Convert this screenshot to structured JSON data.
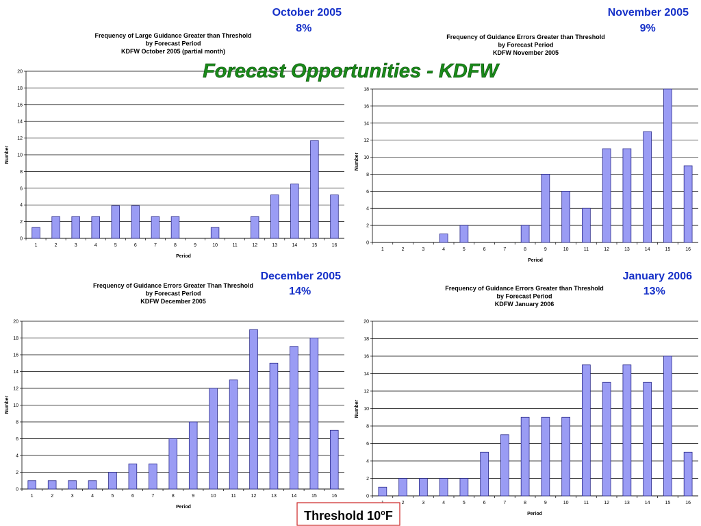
{
  "slide_title": "Forecast Opportunities - KDFW",
  "threshold_label": "Threshold 10",
  "threshold_unit_sup": "o",
  "threshold_unit": "F",
  "colors": {
    "title_green": "#1a8a1a",
    "heading_blue": "#1530c8",
    "bar_fill": "#9a9cf4",
    "bar_stroke": "#2a2a8a",
    "threshold_border": "#cc2222"
  },
  "chart_data": [
    {
      "type": "bar",
      "heading": "October 2005",
      "percent": "8%",
      "title_lines": [
        "Frequency of Large Guidance Greater than Threshold",
        "by Forecast Period",
        "KDFW October 2005 (partial month)"
      ],
      "xlabel": "Period",
      "ylabel": "Number",
      "ylim": [
        0,
        20
      ],
      "yticks": [
        0,
        2,
        4,
        6,
        8,
        10,
        12,
        14,
        16,
        18,
        20
      ],
      "grid": true,
      "categories": [
        "1",
        "2",
        "3",
        "4",
        "5",
        "6",
        "7",
        "8",
        "9",
        "10",
        "11",
        "12",
        "13",
        "14",
        "15",
        "16"
      ],
      "values": [
        1.3,
        2.6,
        2.6,
        2.6,
        3.9,
        3.9,
        2.6,
        2.6,
        0,
        1.3,
        0,
        2.6,
        5.2,
        6.5,
        11.7,
        5.2
      ]
    },
    {
      "type": "bar",
      "heading": "November 2005",
      "percent": "9%",
      "title_lines": [
        "Frequency of Guidance Errors Greater than Threshold",
        "by Forecast Period",
        "KDFW November 2005"
      ],
      "xlabel": "Period",
      "ylabel": "Number",
      "ylim": [
        0,
        18
      ],
      "yticks": [
        0,
        2,
        4,
        6,
        8,
        10,
        12,
        14,
        16,
        18
      ],
      "grid": true,
      "categories": [
        "1",
        "2",
        "3",
        "4",
        "5",
        "6",
        "7",
        "8",
        "9",
        "10",
        "11",
        "12",
        "13",
        "14",
        "15",
        "16"
      ],
      "values": [
        0,
        0,
        0,
        1,
        2,
        0,
        0,
        2,
        8,
        6,
        4,
        11,
        11,
        13,
        18,
        9
      ]
    },
    {
      "type": "bar",
      "heading": "December 2005",
      "percent": "14%",
      "title_lines": [
        "Frequency of Guidance Errors Greater Than Threshold",
        "by Forecast Period",
        "KDFW December 2005"
      ],
      "xlabel": "Period",
      "ylabel": "Number",
      "ylim": [
        0,
        20
      ],
      "yticks": [
        0,
        2,
        4,
        6,
        8,
        10,
        12,
        14,
        16,
        18,
        20
      ],
      "grid": true,
      "categories": [
        "1",
        "2",
        "3",
        "4",
        "5",
        "6",
        "7",
        "8",
        "9",
        "10",
        "11",
        "12",
        "13",
        "14",
        "15",
        "16"
      ],
      "values": [
        1,
        1,
        1,
        1,
        2,
        3,
        3,
        6,
        8,
        12,
        13,
        19,
        15,
        17,
        18,
        7
      ]
    },
    {
      "type": "bar",
      "heading": "January 2006",
      "percent": "13%",
      "title_lines": [
        "Frequency of Guidance Errors Greater than Threshold",
        "by Forecast Period",
        "KDFW January 2006"
      ],
      "xlabel": "Period",
      "ylabel": "Number",
      "ylim": [
        0,
        20
      ],
      "yticks": [
        0,
        2,
        4,
        6,
        8,
        10,
        12,
        14,
        16,
        18,
        20
      ],
      "grid": true,
      "categories": [
        "1",
        "2",
        "3",
        "4",
        "5",
        "6",
        "7",
        "8",
        "9",
        "10",
        "11",
        "12",
        "13",
        "14",
        "15",
        "16"
      ],
      "values": [
        1,
        2,
        2,
        2,
        2,
        5,
        7,
        9,
        9,
        9,
        15,
        13,
        15,
        13,
        16,
        5
      ]
    }
  ]
}
